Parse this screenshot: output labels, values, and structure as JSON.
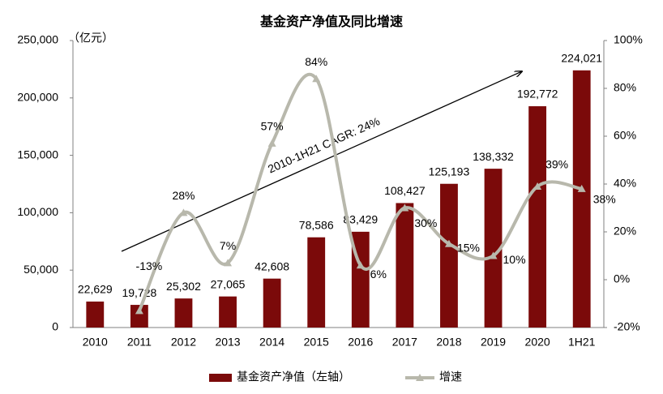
{
  "chart_data": {
    "type": "bar-line",
    "title": "基金资产净值及同比增速",
    "y_unit_label": "（亿元）",
    "annotation": "2010-1H21 CAGR: 24%",
    "categories": [
      "2010",
      "2011",
      "2012",
      "2013",
      "2014",
      "2015",
      "2016",
      "2017",
      "2018",
      "2019",
      "2020",
      "1H21"
    ],
    "series": [
      {
        "name": "基金资产净值（左轴）",
        "type": "bar",
        "color": "#7b0a0a",
        "values": [
          22629,
          19728,
          25302,
          27065,
          42608,
          78586,
          83429,
          108427,
          125193,
          138332,
          192772,
          224021
        ],
        "value_labels": [
          "22,629",
          "19,728",
          "25,302",
          "27,065",
          "42,608",
          "78,586",
          "83,429",
          "108,427",
          "125,193",
          "138,332",
          "192,772",
          "224,021"
        ]
      },
      {
        "name": "增速",
        "type": "line",
        "axis": "y2",
        "color": "#b8b8ac",
        "values": [
          null,
          -13,
          28,
          7,
          57,
          84,
          6,
          30,
          15,
          10,
          39,
          38
        ],
        "value_labels": [
          null,
          "-13%",
          "28%",
          "7%",
          "57%",
          "84%",
          "6%",
          "30%",
          "15%",
          "10%",
          "39%",
          "38%"
        ]
      }
    ],
    "ylim": [
      0,
      250000
    ],
    "yticks": [
      0,
      {
        "value": 50000,
        "label": "50,000"
      },
      {
        "value": 100000,
        "label": "100,000"
      },
      {
        "value": 150000,
        "label": "150,000"
      },
      {
        "value": 200000,
        "label": "200,000"
      },
      {
        "value": 250000,
        "label": "250,000"
      }
    ],
    "y2lim": [
      -20,
      100
    ],
    "y2ticks": [
      {
        "value": -20,
        "label": "-20%"
      },
      {
        "value": 0,
        "label": "0%"
      },
      {
        "value": 20,
        "label": "20%"
      },
      {
        "value": 40,
        "label": "40%"
      },
      {
        "value": 60,
        "label": "60%"
      },
      {
        "value": 80,
        "label": "80%"
      },
      {
        "value": 100,
        "label": "100%"
      }
    ],
    "grid": false,
    "legend": "bottom"
  }
}
